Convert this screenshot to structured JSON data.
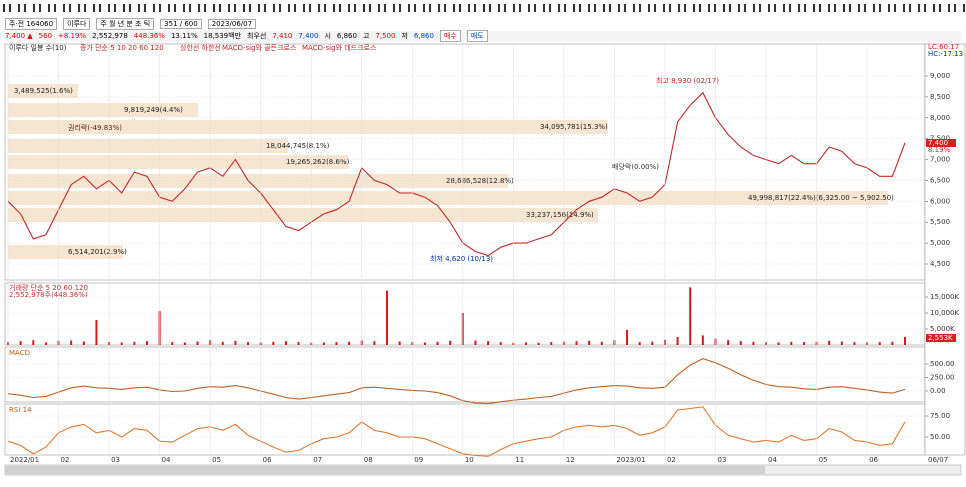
{
  "toolbar": [
    "주·전 164060",
    "이루다",
    "주 월 년 분 초 틱",
    "351 / 600",
    "2023/06/07"
  ],
  "info": [
    "7,400 ▲",
    "560",
    "+8.19%",
    "2,552,978",
    "448.36%",
    "13.11%",
    "18,539백만",
    "최우선",
    "7,410",
    "7,400",
    "시",
    "6,860",
    "고",
    "7,500",
    "저",
    "6,860",
    "매수",
    "매도"
  ],
  "legend": [
    "이루다 일봉 수(10)",
    "종가 단순 5 10 20 60 120",
    "상한선 하한선",
    "MACD-sig와 골든크로스",
    "MACD-sig와 데드크로스"
  ],
  "right_labels": [
    "LC:60.17",
    "HC:-17.13",
    "7,400",
    "8.19%",
    "2,553K",
    "06/07"
  ],
  "volume_legend": [
    "거래량 단순 5 20 60 120",
    "2,552,978주(448.36%)"
  ],
  "annotations": [
    "3,489,525(1.6%)",
    "9,819,249(4.4%)",
    "34,095,781(15.3%)",
    "18,044,745(8.1%)",
    "19,265,262(8.6%)",
    "28,686,528(12.8%)",
    "33,237,156(14.9%)",
    "49,998,817(22.4%)(6,325.00 ~ 5,902.50)",
    "6,514,201(2.9%)"
  ],
  "events": [
    "권리락(-49.83%)",
    "최고 8,930 (02/17)",
    "최저 4,620 (10/13)",
    "배당락(0.00%)"
  ],
  "chart_data": [
    {
      "type": "line",
      "name": "종가",
      "color": "#c02828",
      "ylim": [
        4117,
        9766
      ],
      "yticks": [
        {
          "value": 4500,
          "label": "4,500"
        },
        {
          "value": 5000,
          "label": "5,000"
        },
        {
          "value": 5500,
          "label": "5,500"
        },
        {
          "value": 6000,
          "label": "6,000"
        },
        {
          "value": 6500,
          "label": "6,500"
        },
        {
          "value": 7000,
          "label": "7,000"
        },
        {
          "value": 7500,
          "label": "7,500"
        },
        {
          "value": 8000,
          "label": "8,000"
        },
        {
          "value": 8500,
          "label": "8,500"
        },
        {
          "value": 9000,
          "label": "9,000"
        }
      ],
      "values": [
        6000,
        5700,
        5100,
        5200,
        5800,
        6400,
        6600,
        6300,
        6500,
        6200,
        6700,
        6600,
        6100,
        6000,
        6300,
        6700,
        6800,
        6600,
        7000,
        6500,
        6200,
        5800,
        5400,
        5300,
        5500,
        5700,
        5800,
        6000,
        6800,
        6500,
        6400,
        6200,
        6200,
        6100,
        5900,
        5500,
        5000,
        4800,
        4700,
        4900,
        5000,
        5000,
        5100,
        5200,
        5500,
        5800,
        6000,
        6100,
        6300,
        6200,
        6000,
        6100,
        6400,
        7900,
        8300,
        8600,
        8000,
        7600,
        7300,
        7100,
        7000,
        6900,
        7100,
        6900,
        6900,
        7300,
        7200,
        6900,
        6800,
        6600,
        6600,
        7400
      ]
    },
    {
      "type": "bar",
      "name": "거래량",
      "color": "#d81818",
      "ylim": [
        0,
        19375
      ],
      "yticks": [
        {
          "value": 5000,
          "label": "5,000K"
        },
        {
          "value": 10000,
          "label": "10,000K"
        },
        {
          "value": 15000,
          "label": "15,000K"
        }
      ],
      "values": [
        900,
        1200,
        1500,
        800,
        1300,
        1400,
        1100,
        7800,
        900,
        800,
        1000,
        1200,
        10600,
        900,
        800,
        1100,
        1500,
        1000,
        1300,
        900,
        800,
        1000,
        1200,
        900,
        700,
        800,
        900,
        1000,
        1400,
        1200,
        17000,
        1100,
        900,
        800,
        1000,
        1300,
        10000,
        1400,
        1200,
        900,
        700,
        800,
        700,
        900,
        1000,
        1200,
        1300,
        1000,
        1500,
        4700,
        900,
        1000,
        1600,
        2500,
        18000,
        3000,
        2000,
        1500,
        1200,
        1000,
        900,
        800,
        1000,
        900,
        1000,
        1300,
        1100,
        900,
        800,
        900,
        1000,
        2500
      ]
    },
    {
      "type": "line",
      "name": "MACD",
      "color": "#c06020",
      "ylim": [
        -204,
        815
      ],
      "yticks": [
        {
          "value": 0,
          "label": "0.00"
        },
        {
          "value": 250,
          "label": "250.00"
        },
        {
          "value": 500,
          "label": "500.00"
        }
      ],
      "values": [
        -50,
        -80,
        -120,
        -100,
        -20,
        60,
        90,
        60,
        50,
        30,
        60,
        70,
        20,
        -10,
        0,
        50,
        80,
        70,
        100,
        60,
        0,
        -60,
        -120,
        -150,
        -120,
        -90,
        -60,
        -30,
        60,
        70,
        50,
        30,
        10,
        0,
        -30,
        -90,
        -180,
        -220,
        -230,
        -200,
        -170,
        -150,
        -120,
        -100,
        -40,
        20,
        60,
        80,
        100,
        90,
        60,
        50,
        70,
        300,
        480,
        600,
        520,
        420,
        300,
        200,
        120,
        80,
        70,
        40,
        30,
        70,
        80,
        50,
        20,
        -20,
        -40,
        30
      ]
    },
    {
      "type": "line",
      "name": "RSI 14",
      "color": "#e07830",
      "ylim": [
        28.6,
        89.3
      ],
      "yticks": [
        {
          "value": 50,
          "label": "50.00"
        },
        {
          "value": 75,
          "label": "75.00"
        }
      ],
      "categories": [
        "2022/01",
        null,
        null,
        null,
        "02",
        null,
        null,
        null,
        "03",
        null,
        null,
        null,
        "04",
        null,
        null,
        null,
        "05",
        null,
        null,
        null,
        "06",
        null,
        null,
        null,
        "07",
        null,
        null,
        null,
        "08",
        null,
        null,
        null,
        "09",
        null,
        null,
        null,
        "10",
        null,
        null,
        null,
        "11",
        null,
        null,
        null,
        "12",
        null,
        null,
        null,
        "2023/01",
        null,
        null,
        null,
        "02",
        null,
        null,
        null,
        "03",
        null,
        null,
        null,
        "04",
        null,
        null,
        null,
        "05",
        null,
        null,
        null,
        "06",
        null,
        null,
        null
      ],
      "values": [
        45,
        40,
        30,
        38,
        55,
        62,
        65,
        55,
        58,
        50,
        60,
        58,
        45,
        44,
        52,
        60,
        62,
        58,
        65,
        52,
        45,
        38,
        32,
        34,
        42,
        48,
        50,
        55,
        68,
        58,
        55,
        50,
        50,
        48,
        42,
        36,
        30,
        28,
        27,
        35,
        42,
        45,
        48,
        50,
        58,
        62,
        64,
        62,
        64,
        60,
        52,
        55,
        62,
        82,
        84,
        86,
        64,
        52,
        48,
        44,
        46,
        44,
        52,
        46,
        48,
        60,
        56,
        46,
        44,
        40,
        42,
        68
      ]
    }
  ]
}
